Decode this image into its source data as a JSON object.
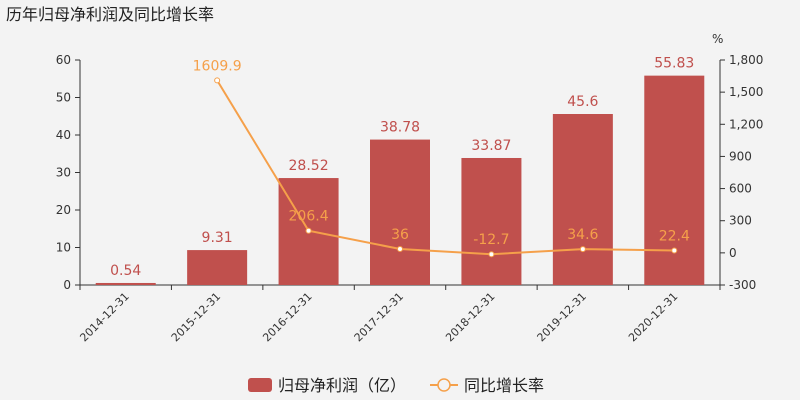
{
  "chart_data": {
    "type": "bar",
    "title": "历年归母净利润及同比增长率",
    "categories": [
      "2014-12-31",
      "2015-12-31",
      "2016-12-31",
      "2017-12-31",
      "2018-12-31",
      "2019-12-31",
      "2020-12-31"
    ],
    "series": [
      {
        "name": "归母净利润（亿）",
        "type": "bar",
        "axis": "left",
        "color": "#c0504d",
        "values": [
          0.54,
          9.31,
          28.52,
          38.78,
          33.87,
          45.6,
          55.83
        ]
      },
      {
        "name": "同比增长率",
        "type": "line",
        "axis": "right",
        "color": "#f5a04a",
        "values": [
          null,
          1609.9,
          206.4,
          36,
          -12.7,
          34.6,
          22.4
        ]
      }
    ],
    "ylim": [
      0,
      60
    ],
    "yticks": [
      0,
      10,
      20,
      30,
      40,
      50,
      60
    ],
    "y2lim": [
      -300,
      1800
    ],
    "y2ticks": [
      "-300",
      "0",
      "300",
      "600",
      "900",
      "1,200",
      "1,500",
      "1,800"
    ],
    "y2unit": "%",
    "legend_position": "bottom-center"
  }
}
